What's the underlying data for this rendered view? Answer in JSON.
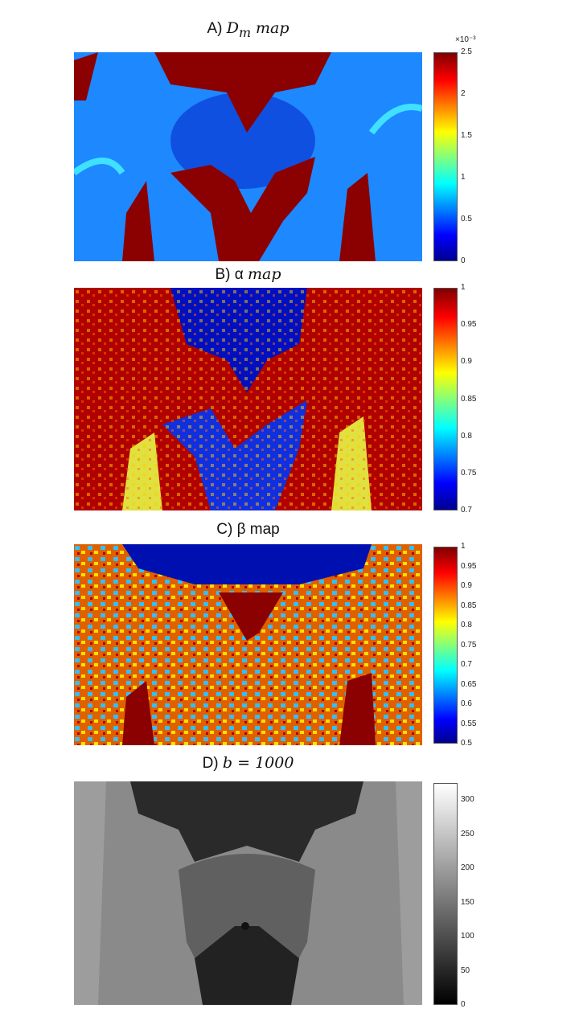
{
  "chart_data": [
    {
      "type": "heatmap",
      "title_prefix": "A) ",
      "title_math": "D",
      "title_sub": "m",
      "title_suffix": " map",
      "colormap": "jet",
      "range": [
        0,
        0.0025
      ],
      "colorbar_multiplier": "×10⁻³",
      "ticks": [
        "0",
        "0.5",
        "1",
        "1.5",
        "2",
        "2.5"
      ],
      "tick_values": [
        0,
        0.5,
        1,
        1.5,
        2,
        2.5
      ],
      "tick_max": 2.5
    },
    {
      "type": "heatmap",
      "title_prefix": "B) α ",
      "title_suffix": "map",
      "colormap": "jet",
      "range": [
        0.7,
        1
      ],
      "ticks": [
        "0.7",
        "0.75",
        "0.8",
        "0.85",
        "0.9",
        "0.95",
        "1"
      ],
      "tick_values": [
        0.7,
        0.75,
        0.8,
        0.85,
        0.9,
        0.95,
        1
      ],
      "tick_max": 1
    },
    {
      "type": "heatmap",
      "title_prefix": "C) β map",
      "colormap": "jet",
      "range": [
        0.5,
        1
      ],
      "ticks": [
        "0.5",
        "0.55",
        "0.6",
        "0.65",
        "0.7",
        "0.75",
        "0.8",
        "0.85",
        "0.9",
        "0.95",
        "1"
      ],
      "tick_values": [
        0.5,
        0.55,
        0.6,
        0.65,
        0.7,
        0.75,
        0.8,
        0.85,
        0.9,
        0.95,
        1
      ],
      "tick_max": 1
    },
    {
      "type": "heatmap",
      "title_prefix": "D) ",
      "title_math": "b = 1000",
      "colormap": "gray",
      "range": [
        0,
        325
      ],
      "ticks": [
        "0",
        "50",
        "100",
        "150",
        "200",
        "250",
        "300"
      ],
      "tick_values": [
        0,
        50,
        100,
        150,
        200,
        250,
        300
      ],
      "tick_max": 325
    }
  ],
  "colors": {
    "jet_low": "#00008f",
    "jet_high": "#800000",
    "csf": "#8b0000",
    "tissue_blue": "#1e88ff"
  }
}
